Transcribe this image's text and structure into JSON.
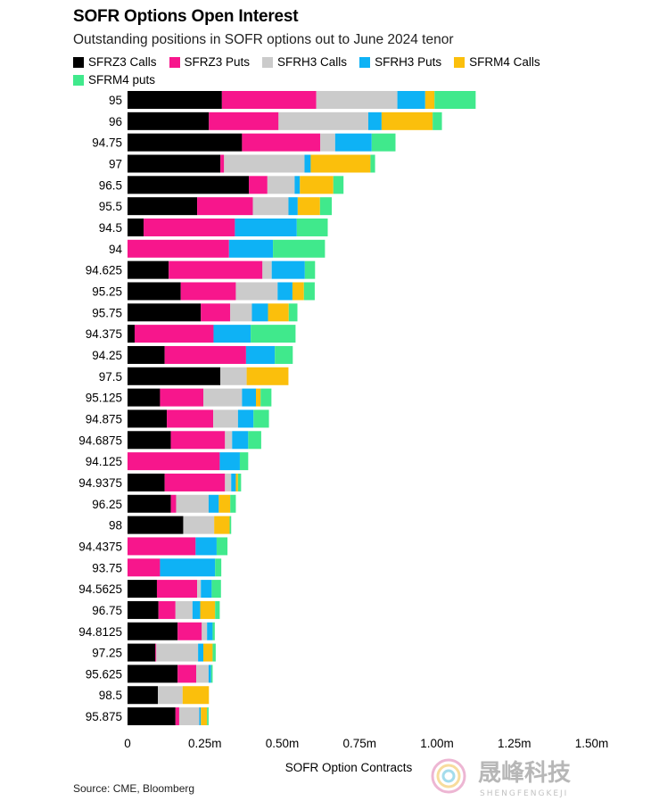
{
  "title": "SOFR Options Open Interest",
  "subtitle": "Outstanding positions in SOFR options out to June 2024 tenor",
  "source": "Source: CME, Bloomberg",
  "watermark": {
    "chinese": "晟峰科技",
    "latin": "SHENGFENGKEJI"
  },
  "chart_data": {
    "type": "bar",
    "orientation": "horizontal",
    "stacked": true,
    "xlabel": "SOFR Option Contracts",
    "xlim": [
      0,
      1500000
    ],
    "x_ticks": [
      0,
      250000,
      500000,
      750000,
      1000000,
      1250000,
      1500000
    ],
    "x_tick_labels": [
      "0",
      "0.25m",
      "0.50m",
      "0.75m",
      "1.00m",
      "1.25m",
      "1.50m"
    ],
    "grid": false,
    "legend_position": "top",
    "categories": [
      "95",
      "96",
      "94.75",
      "97",
      "96.5",
      "95.5",
      "94.5",
      "94",
      "94.625",
      "95.25",
      "95.75",
      "94.375",
      "94.25",
      "97.5",
      "95.125",
      "94.875",
      "94.6875",
      "94.125",
      "94.9375",
      "96.25",
      "98",
      "94.4375",
      "93.75",
      "94.5625",
      "96.75",
      "94.8125",
      "97.25",
      "95.625",
      "98.5",
      "95.875"
    ],
    "series": [
      {
        "name": "SFRZ3 Calls",
        "color": "#000000",
        "values": [
          305000,
          263000,
          370000,
          300000,
          392000,
          225000,
          52000,
          0,
          133000,
          172000,
          237000,
          23000,
          120000,
          300000,
          105000,
          127000,
          140000,
          0,
          120000,
          140000,
          180000,
          0,
          0,
          95000,
          100000,
          162000,
          90000,
          162000,
          98000,
          155000
        ]
      },
      {
        "name": "SFRZ3 Puts",
        "color": "#f7168c",
        "values": [
          305000,
          225000,
          253000,
          12000,
          60000,
          180000,
          295000,
          328000,
          303000,
          178000,
          95000,
          255000,
          263000,
          0,
          140000,
          150000,
          175000,
          298000,
          195000,
          17000,
          0,
          220000,
          105000,
          130000,
          55000,
          78000,
          3000,
          60000,
          0,
          12000
        ]
      },
      {
        "name": "SFRH3 Calls",
        "color": "#cbcbcb",
        "values": [
          262000,
          290000,
          48000,
          260000,
          88000,
          115000,
          0,
          0,
          30000,
          135000,
          70000,
          0,
          0,
          85000,
          125000,
          80000,
          23000,
          0,
          20000,
          105000,
          100000,
          0,
          0,
          12000,
          55000,
          17000,
          135000,
          40000,
          80000,
          65000
        ]
      },
      {
        "name": "SFRH3 Puts",
        "color": "#0eb2f5",
        "values": [
          90000,
          43000,
          118000,
          20000,
          17000,
          30000,
          200000,
          142000,
          107000,
          48000,
          52000,
          120000,
          93000,
          0,
          45000,
          50000,
          52000,
          65000,
          15000,
          33000,
          0,
          68000,
          178000,
          35000,
          25000,
          18000,
          17000,
          8000,
          0,
          5000
        ]
      },
      {
        "name": "SFRM4 Calls",
        "color": "#fbbf0c",
        "values": [
          30000,
          165000,
          0,
          193000,
          108000,
          72000,
          0,
          0,
          0,
          37000,
          67000,
          0,
          0,
          135000,
          15000,
          0,
          0,
          0,
          7000,
          37000,
          50000,
          0,
          0,
          0,
          48000,
          0,
          30000,
          0,
          85000,
          20000
        ]
      },
      {
        "name": "SFRM4 puts",
        "color": "#40e98c",
        "values": [
          133000,
          30000,
          77000,
          15000,
          33000,
          38000,
          100000,
          168000,
          33000,
          35000,
          28000,
          145000,
          58000,
          0,
          35000,
          50000,
          42000,
          27000,
          10000,
          18000,
          5000,
          35000,
          20000,
          30000,
          15000,
          7000,
          10000,
          5000,
          0,
          5000
        ]
      }
    ]
  }
}
